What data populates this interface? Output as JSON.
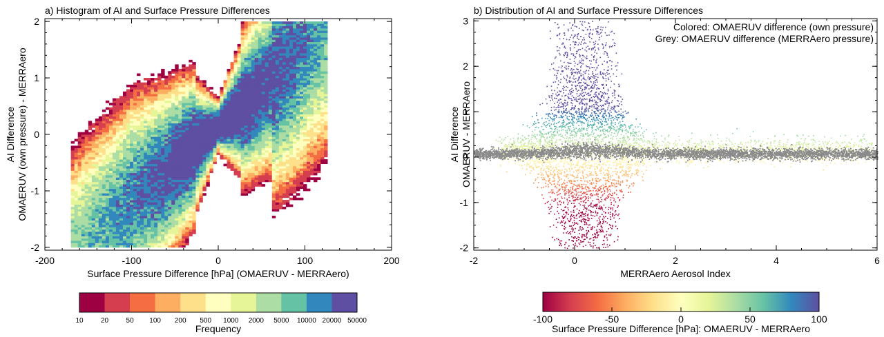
{
  "colors": {
    "histogram_bins": [
      "#9e0142",
      "#d53e4f",
      "#f46d43",
      "#fdae61",
      "#fee08b",
      "#ffffbf",
      "#e6f598",
      "#abdda4",
      "#66c2a5",
      "#3288bd",
      "#5e4fa2"
    ],
    "scatter_grey": "#8a8a8a",
    "grey_label": "#a0a0a0"
  },
  "chart_data": [
    {
      "type": "heatmap",
      "title": "a) Histogram of AI and Surface Pressure Differences",
      "xlabel": "Surface Pressure Difference [hPa] (OMAERUV - MERRAero)",
      "ylabel_lines": [
        "AI Difference",
        "OMAERUV (own pressure) - MERRAero"
      ],
      "xlim": [
        -200,
        200
      ],
      "ylim": [
        -2.05,
        2.05
      ],
      "x_ticks": [
        -200,
        -100,
        0,
        100,
        200
      ],
      "y_ticks": [
        -2,
        -1,
        0,
        1,
        2
      ],
      "colorbar": {
        "label": "Frequency",
        "bins": [
          "10",
          "20",
          "50",
          "100",
          "200",
          "500",
          "1000",
          "2000",
          "5000",
          "10000",
          "20000",
          "50000"
        ]
      },
      "ridge": {
        "x": [
          -150,
          -120,
          -90,
          -60,
          -30,
          0,
          30,
          60,
          80,
          100,
          120
        ],
        "y": [
          -1.85,
          -1.45,
          -1.05,
          -0.7,
          -0.25,
          0.15,
          0.5,
          0.95,
          1.3,
          1.7,
          2.0
        ]
      }
    },
    {
      "type": "scatter",
      "title": "b) Distribution of AI and Surface Pressure Differences",
      "xlabel": "MERRAero Aerosol Index",
      "ylabel_lines": [
        "AI Difference",
        "OMAERUV - MERRAero"
      ],
      "xlim": [
        -2,
        6
      ],
      "ylim": [
        -2.05,
        3.05
      ],
      "x_ticks": [
        -2,
        0,
        2,
        4,
        6
      ],
      "y_ticks": [
        -2,
        -1,
        0,
        1,
        2,
        3
      ],
      "legend": {
        "colored": "Colored: OMAERUV difference (own pressure)",
        "grey": "Grey: OMAERUV difference (MERRAero pressure)"
      },
      "colorbar": {
        "label": "Surface Pressure Difference [hPa]: OMAERUV - MERRAero",
        "range": [
          -100,
          100
        ],
        "ticks": [
          "-100",
          "-50",
          "0",
          "50",
          "100"
        ]
      }
    }
  ]
}
